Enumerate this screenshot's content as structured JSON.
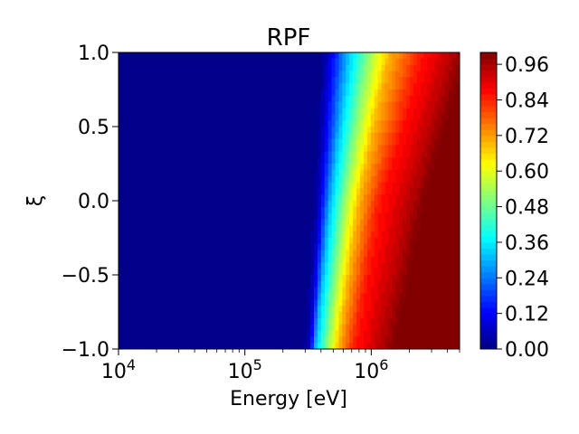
{
  "chart_data": {
    "type": "heatmap",
    "title": "RPF",
    "xlabel": "Energy [eV]",
    "ylabel": "ξ",
    "x_scale": "log",
    "xlim": [
      10000,
      5000000
    ],
    "ylim": [
      -1.0,
      1.0
    ],
    "x_ticks": [
      {
        "value": 10000,
        "base": "10",
        "exp": "4"
      },
      {
        "value": 100000,
        "base": "10",
        "exp": "5"
      },
      {
        "value": 1000000,
        "base": "10",
        "exp": "6"
      }
    ],
    "y_ticks": [
      {
        "value": 1.0,
        "label": "1.0"
      },
      {
        "value": 0.5,
        "label": "0.5"
      },
      {
        "value": 0.0,
        "label": "0.0"
      },
      {
        "value": -0.5,
        "label": "−0.5"
      },
      {
        "value": -1.0,
        "label": "−1.0"
      }
    ],
    "colorbar": {
      "colormap": "jet",
      "range": [
        0.0,
        1.0
      ],
      "levels": 50,
      "ticks": [
        {
          "value": 0.96,
          "label": "0.96"
        },
        {
          "value": 0.84,
          "label": "0.84"
        },
        {
          "value": 0.72,
          "label": "0.72"
        },
        {
          "value": 0.6,
          "label": "0.60"
        },
        {
          "value": 0.48,
          "label": "0.48"
        },
        {
          "value": 0.36,
          "label": "0.36"
        },
        {
          "value": 0.24,
          "label": "0.24"
        },
        {
          "value": 0.12,
          "label": "0.12"
        },
        {
          "value": 0.0,
          "label": "0.00"
        }
      ]
    },
    "contours": [
      {
        "value": 0.05,
        "points": [
          [
            320000,
            -1.0
          ],
          [
            380000,
            0.0
          ],
          [
            440000,
            1.0
          ]
        ]
      },
      {
        "value": 0.3,
        "points": [
          [
            360000,
            -1.0
          ],
          [
            470000,
            0.0
          ],
          [
            650000,
            1.0
          ]
        ]
      },
      {
        "value": 0.5,
        "points": [
          [
            440000,
            -1.0
          ],
          [
            600000,
            0.0
          ],
          [
            930000,
            1.0
          ]
        ]
      },
      {
        "value": 0.7,
        "points": [
          [
            550000,
            -1.0
          ],
          [
            800000,
            0.0
          ],
          [
            1400000,
            1.0
          ]
        ]
      },
      {
        "value": 0.85,
        "points": [
          [
            720000,
            -1.0
          ],
          [
            1150000,
            0.0
          ],
          [
            2500000,
            1.0
          ]
        ]
      },
      {
        "value": 0.95,
        "points": [
          [
            1200000,
            -1.0
          ],
          [
            2100000,
            0.0
          ],
          [
            4500000,
            1.0
          ]
        ]
      }
    ]
  }
}
